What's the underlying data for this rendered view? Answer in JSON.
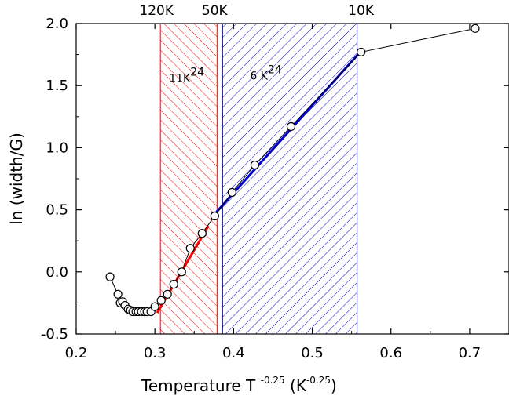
{
  "chart_data": {
    "type": "scatter",
    "xlabel": "Temperature T",
    "xlabel_sup": "-0.25",
    "xlabel_unit_open": "(K",
    "xlabel_unit_sup": "-0.25",
    "xlabel_unit_close": ")",
    "ylabel": "ln (width/G)",
    "xlim": [
      0.2,
      0.75
    ],
    "ylim": [
      -0.5,
      2.0
    ],
    "x_ticks": [
      0.2,
      0.3,
      0.4,
      0.5,
      0.6,
      0.7
    ],
    "x_tick_labels": [
      "0.2",
      "0.3",
      "0.4",
      "0.5",
      "0.6",
      "0.7"
    ],
    "y_ticks": [
      -0.5,
      0.0,
      0.5,
      1.0,
      1.5,
      2.0
    ],
    "y_tick_labels": [
      "-0.5",
      "0.0",
      "0.5",
      "1.0",
      "1.5",
      "2.0"
    ],
    "top_axis_labels": [
      {
        "text": "120K",
        "x": 0.302
      },
      {
        "text": "50K",
        "x": 0.376
      },
      {
        "text": "10K",
        "x": 0.562
      }
    ],
    "shaded_regions": [
      {
        "x0": 0.307,
        "x1": 0.379,
        "color": "#ff0000",
        "hatch": "backslash"
      },
      {
        "x0": 0.386,
        "x1": 0.557,
        "color": "#0000cc",
        "hatch": "slash"
      }
    ],
    "annotations": [
      {
        "text": "11K",
        "sup": "0.25",
        "x": 0.318,
        "y": 1.53,
        "color": "#ff0000"
      },
      {
        "text": "6 K",
        "sup": "0.25",
        "x": 0.421,
        "y": 1.55,
        "color": "#0000cc"
      }
    ],
    "series": [
      {
        "marker": "open-circle",
        "color": "#000000",
        "x": [
          0.243,
          0.253,
          0.256,
          0.259,
          0.262,
          0.266,
          0.269,
          0.272,
          0.276,
          0.279,
          0.283,
          0.287,
          0.29,
          0.295,
          0.3,
          0.308,
          0.316,
          0.324,
          0.334,
          0.345,
          0.36,
          0.376,
          0.398,
          0.427,
          0.473,
          0.562,
          0.707
        ],
        "y": [
          -0.04,
          -0.18,
          -0.25,
          -0.24,
          -0.27,
          -0.3,
          -0.31,
          -0.32,
          -0.32,
          -0.32,
          -0.32,
          -0.32,
          -0.32,
          -0.32,
          -0.28,
          -0.23,
          -0.18,
          -0.1,
          0.0,
          0.19,
          0.31,
          0.45,
          0.64,
          0.86,
          1.17,
          1.77,
          1.96
        ]
      }
    ],
    "fit_lines": [
      {
        "color": "#ff0000",
        "x0": 0.303,
        "y0": -0.33,
        "x1": 0.368,
        "y1": 0.37
      },
      {
        "color": "#0000cc",
        "x0": 0.378,
        "y0": 0.48,
        "x1": 0.558,
        "y1": 1.75
      }
    ]
  }
}
